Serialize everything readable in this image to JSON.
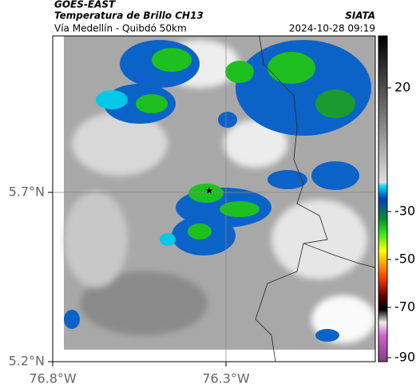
{
  "header": {
    "satellite": "GOES-EAST",
    "product": "Temperatura de Brillo CH13",
    "route": "Vía Medellín - Quibdó 50km",
    "source": "SIATA",
    "datetime": "2024-10-28 09:19"
  },
  "axes": {
    "y_labels": [
      "5.7°N",
      "5.2°N"
    ],
    "x_labels": [
      "76.8°W",
      "76.3°W"
    ]
  },
  "colorbar": {
    "tick_labels": [
      "20",
      "-30",
      "-50",
      "-70",
      "-90"
    ]
  }
}
